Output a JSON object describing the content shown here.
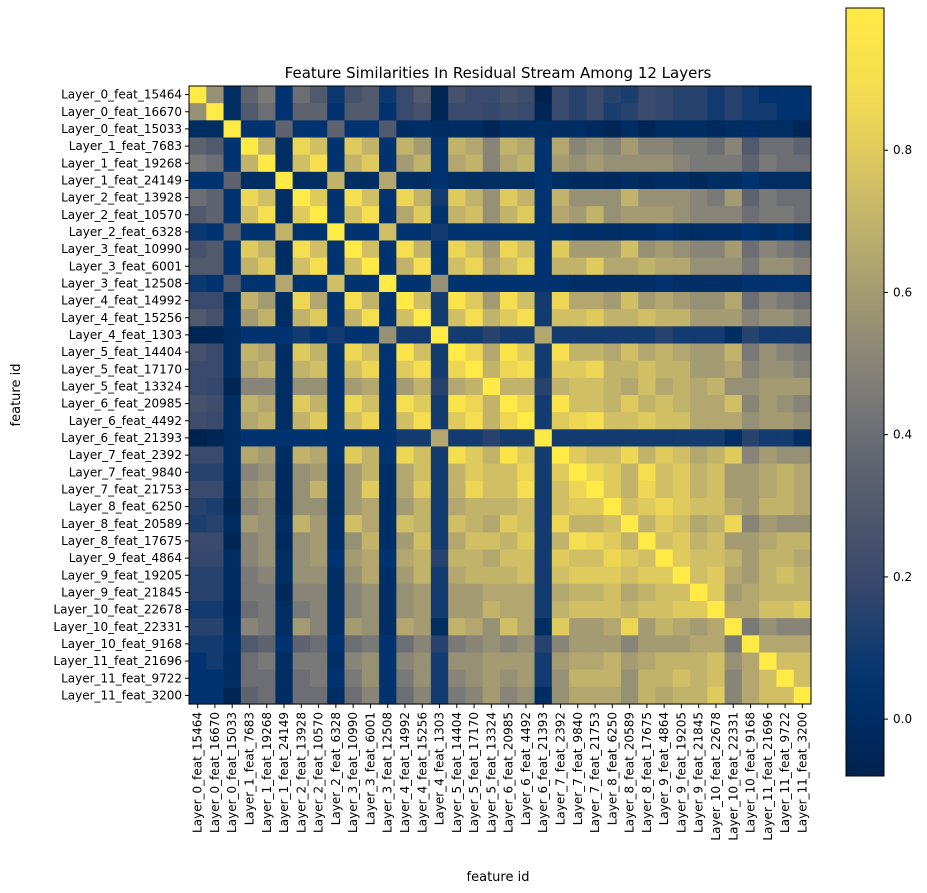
{
  "chart_data": {
    "type": "heatmap",
    "title": "Feature Similarities In Residual Stream Among 12 Layers",
    "xlabel": "feature id",
    "ylabel": "feature id",
    "colormap": "cividis",
    "vmin": -0.08,
    "vmax": 1.0,
    "colorbar_ticks": [
      "0.0",
      "0.2",
      "0.4",
      "0.6",
      "0.8"
    ],
    "colorbar_tick_values": [
      0.0,
      0.2,
      0.4,
      0.6,
      0.8
    ],
    "features": [
      "Layer_0_feat_15464",
      "Layer_0_feat_16670",
      "Layer_0_feat_15033",
      "Layer_1_feat_7683",
      "Layer_1_feat_19268",
      "Layer_1_feat_24149",
      "Layer_2_feat_13928",
      "Layer_2_feat_10570",
      "Layer_2_feat_6328",
      "Layer_3_feat_10990",
      "Layer_3_feat_6001",
      "Layer_3_feat_12508",
      "Layer_4_feat_14992",
      "Layer_4_feat_15256",
      "Layer_4_feat_1303",
      "Layer_5_feat_14404",
      "Layer_5_feat_17170",
      "Layer_5_feat_13324",
      "Layer_6_feat_20985",
      "Layer_6_feat_4492",
      "Layer_6_feat_21393",
      "Layer_7_feat_2392",
      "Layer_7_feat_9840",
      "Layer_7_feat_21753",
      "Layer_8_feat_6250",
      "Layer_8_feat_20589",
      "Layer_8_feat_17675",
      "Layer_9_feat_4864",
      "Layer_9_feat_19205",
      "Layer_9_feat_21845",
      "Layer_10_feat_22678",
      "Layer_10_feat_22331",
      "Layer_10_feat_9168",
      "Layer_11_feat_21696",
      "Layer_11_feat_9722",
      "Layer_11_feat_3200"
    ],
    "matrix": [
      [
        1.0,
        0.55,
        0.0,
        0.35,
        0.45,
        0.05,
        0.4,
        0.3,
        0.08,
        0.25,
        0.3,
        0.08,
        0.2,
        0.3,
        -0.05,
        0.25,
        0.2,
        0.2,
        0.25,
        0.22,
        -0.08,
        0.2,
        0.15,
        0.2,
        0.15,
        0.12,
        0.2,
        0.18,
        0.15,
        0.15,
        0.1,
        0.15,
        0.1,
        0.05,
        0.05,
        0.05
      ],
      [
        0.55,
        1.0,
        0.0,
        0.3,
        0.4,
        0.05,
        0.35,
        0.35,
        0.05,
        0.3,
        0.3,
        0.05,
        0.2,
        0.25,
        -0.05,
        0.2,
        0.2,
        0.18,
        0.22,
        0.2,
        -0.05,
        0.2,
        0.15,
        0.2,
        0.12,
        0.15,
        0.2,
        0.18,
        0.15,
        0.15,
        0.1,
        0.15,
        0.1,
        0.1,
        0.05,
        0.05
      ],
      [
        0.0,
        0.0,
        1.0,
        0.05,
        0.05,
        0.35,
        0.05,
        0.05,
        0.35,
        0.05,
        0.05,
        0.3,
        0.0,
        0.02,
        0.0,
        0.0,
        0.0,
        -0.05,
        0.0,
        0.0,
        0.0,
        0.0,
        0.0,
        -0.02,
        -0.05,
        0.0,
        -0.05,
        0.0,
        0.0,
        0.0,
        -0.02,
        0.0,
        0.02,
        0.0,
        0.0,
        -0.05
      ],
      [
        0.35,
        0.3,
        0.05,
        1.0,
        0.7,
        0.0,
        0.85,
        0.75,
        0.05,
        0.8,
        0.7,
        0.05,
        0.7,
        0.6,
        0.05,
        0.7,
        0.65,
        0.5,
        0.7,
        0.65,
        0.05,
        0.65,
        0.5,
        0.55,
        0.5,
        0.6,
        0.5,
        0.5,
        0.45,
        0.45,
        0.4,
        0.5,
        0.3,
        0.4,
        0.4,
        0.35
      ],
      [
        0.45,
        0.4,
        0.05,
        0.7,
        1.0,
        0.0,
        0.75,
        0.9,
        0.05,
        0.7,
        0.8,
        0.05,
        0.6,
        0.7,
        0.05,
        0.65,
        0.7,
        0.5,
        0.65,
        0.7,
        0.05,
        0.6,
        0.55,
        0.6,
        0.55,
        0.55,
        0.55,
        0.55,
        0.5,
        0.45,
        0.45,
        0.45,
        0.35,
        0.45,
        0.4,
        0.4
      ],
      [
        0.05,
        0.05,
        0.35,
        0.0,
        0.0,
        1.0,
        0.0,
        0.0,
        0.7,
        0.0,
        0.0,
        0.65,
        0.0,
        0.0,
        0.05,
        0.0,
        0.0,
        0.0,
        0.0,
        0.0,
        0.05,
        0.0,
        -0.02,
        -0.02,
        -0.03,
        0.0,
        -0.02,
        0.0,
        0.0,
        -0.03,
        0.0,
        0.0,
        0.05,
        0.0,
        0.0,
        0.0
      ],
      [
        0.4,
        0.35,
        0.05,
        0.85,
        0.75,
        0.0,
        1.0,
        0.8,
        0.05,
        0.9,
        0.75,
        0.05,
        0.85,
        0.7,
        0.1,
        0.8,
        0.7,
        0.55,
        0.8,
        0.7,
        0.05,
        0.7,
        0.55,
        0.55,
        0.55,
        0.7,
        0.55,
        0.55,
        0.55,
        0.5,
        0.45,
        0.6,
        0.35,
        0.45,
        0.4,
        0.4
      ],
      [
        0.3,
        0.35,
        0.05,
        0.75,
        0.9,
        0.0,
        0.8,
        1.0,
        0.05,
        0.75,
        0.9,
        0.05,
        0.65,
        0.8,
        0.05,
        0.7,
        0.75,
        0.55,
        0.7,
        0.8,
        0.05,
        0.65,
        0.6,
        0.7,
        0.55,
        0.6,
        0.6,
        0.6,
        0.55,
        0.5,
        0.5,
        0.5,
        0.4,
        0.45,
        0.45,
        0.4
      ],
      [
        0.08,
        0.05,
        0.35,
        0.05,
        0.05,
        0.7,
        0.05,
        0.05,
        1.0,
        0.05,
        0.05,
        0.75,
        0.05,
        0.05,
        0.1,
        0.05,
        0.05,
        0.05,
        0.05,
        0.05,
        0.05,
        0.05,
        0.02,
        0.02,
        0.0,
        0.02,
        0.02,
        0.05,
        0.02,
        0.0,
        0.02,
        0.02,
        0.05,
        0.02,
        0.05,
        0.0
      ],
      [
        0.25,
        0.3,
        0.05,
        0.8,
        0.7,
        0.0,
        0.9,
        0.75,
        0.05,
        1.0,
        0.75,
        0.05,
        0.9,
        0.7,
        0.05,
        0.85,
        0.75,
        0.6,
        0.85,
        0.75,
        0.05,
        0.8,
        0.6,
        0.6,
        0.6,
        0.75,
        0.55,
        0.6,
        0.55,
        0.5,
        0.5,
        0.6,
        0.4,
        0.5,
        0.45,
        0.4
      ],
      [
        0.3,
        0.3,
        0.05,
        0.7,
        0.8,
        0.0,
        0.75,
        0.9,
        0.05,
        0.75,
        1.0,
        0.05,
        0.7,
        0.9,
        0.05,
        0.75,
        0.85,
        0.65,
        0.75,
        0.85,
        0.05,
        0.7,
        0.7,
        0.8,
        0.65,
        0.65,
        0.7,
        0.65,
        0.65,
        0.55,
        0.55,
        0.55,
        0.45,
        0.55,
        0.55,
        0.5
      ],
      [
        0.08,
        0.05,
        0.3,
        0.05,
        0.05,
        0.65,
        0.05,
        0.05,
        0.75,
        0.05,
        0.05,
        1.0,
        0.05,
        0.05,
        0.55,
        0.05,
        0.05,
        0.05,
        0.05,
        0.05,
        0.05,
        0.05,
        0.02,
        0.02,
        0.02,
        0.02,
        0.02,
        0.05,
        0.02,
        0.02,
        0.02,
        0.02,
        0.05,
        0.05,
        0.05,
        0.05
      ],
      [
        0.2,
        0.2,
        0.0,
        0.7,
        0.6,
        0.0,
        0.85,
        0.65,
        0.05,
        0.9,
        0.7,
        0.05,
        1.0,
        0.75,
        0.1,
        0.95,
        0.8,
        0.6,
        0.9,
        0.75,
        0.1,
        0.85,
        0.65,
        0.65,
        0.6,
        0.75,
        0.6,
        0.65,
        0.6,
        0.55,
        0.55,
        0.65,
        0.4,
        0.5,
        0.45,
        0.4
      ],
      [
        0.3,
        0.25,
        0.02,
        0.6,
        0.7,
        0.0,
        0.7,
        0.8,
        0.05,
        0.7,
        0.9,
        0.05,
        0.75,
        1.0,
        0.1,
        0.75,
        0.9,
        0.7,
        0.8,
        0.9,
        0.1,
        0.75,
        0.75,
        0.8,
        0.7,
        0.7,
        0.75,
        0.7,
        0.7,
        0.6,
        0.6,
        0.6,
        0.5,
        0.55,
        0.55,
        0.5
      ],
      [
        -0.05,
        -0.05,
        0.0,
        0.05,
        0.05,
        0.05,
        0.1,
        0.05,
        0.1,
        0.05,
        0.05,
        0.55,
        0.1,
        0.1,
        1.0,
        0.1,
        0.1,
        0.15,
        0.1,
        0.1,
        0.65,
        0.1,
        0.1,
        0.1,
        0.1,
        0.1,
        0.1,
        0.15,
        0.1,
        0.1,
        0.1,
        0.0,
        0.15,
        0.1,
        0.1,
        0.1
      ],
      [
        0.25,
        0.2,
        0.0,
        0.7,
        0.65,
        0.0,
        0.8,
        0.7,
        0.05,
        0.85,
        0.75,
        0.05,
        0.95,
        0.75,
        0.1,
        1.0,
        0.85,
        0.65,
        0.95,
        0.8,
        0.1,
        0.9,
        0.7,
        0.7,
        0.65,
        0.75,
        0.65,
        0.7,
        0.65,
        0.6,
        0.6,
        0.7,
        0.45,
        0.55,
        0.5,
        0.45
      ],
      [
        0.2,
        0.2,
        0.0,
        0.65,
        0.7,
        0.0,
        0.7,
        0.75,
        0.05,
        0.75,
        0.85,
        0.05,
        0.8,
        0.9,
        0.1,
        0.85,
        1.0,
        0.7,
        0.85,
        0.9,
        0.1,
        0.8,
        0.8,
        0.85,
        0.7,
        0.7,
        0.75,
        0.7,
        0.7,
        0.6,
        0.6,
        0.65,
        0.5,
        0.55,
        0.55,
        0.5
      ],
      [
        0.2,
        0.18,
        -0.05,
        0.5,
        0.5,
        0.0,
        0.55,
        0.55,
        0.05,
        0.6,
        0.65,
        0.05,
        0.6,
        0.7,
        0.15,
        0.65,
        0.7,
        1.0,
        0.7,
        0.7,
        0.15,
        0.7,
        0.75,
        0.75,
        0.7,
        0.65,
        0.75,
        0.65,
        0.7,
        0.65,
        0.7,
        0.55,
        0.55,
        0.6,
        0.6,
        0.6
      ],
      [
        0.25,
        0.22,
        0.0,
        0.7,
        0.65,
        0.0,
        0.8,
        0.7,
        0.05,
        0.85,
        0.75,
        0.05,
        0.9,
        0.8,
        0.1,
        0.95,
        0.85,
        0.7,
        1.0,
        0.85,
        0.1,
        0.95,
        0.75,
        0.75,
        0.7,
        0.8,
        0.7,
        0.75,
        0.7,
        0.65,
        0.65,
        0.75,
        0.5,
        0.6,
        0.55,
        0.5
      ],
      [
        0.22,
        0.2,
        0.0,
        0.65,
        0.7,
        0.0,
        0.7,
        0.8,
        0.05,
        0.75,
        0.85,
        0.05,
        0.75,
        0.9,
        0.1,
        0.8,
        0.9,
        0.7,
        0.85,
        1.0,
        0.1,
        0.8,
        0.85,
        0.9,
        0.75,
        0.75,
        0.8,
        0.75,
        0.75,
        0.65,
        0.65,
        0.65,
        0.55,
        0.6,
        0.6,
        0.55
      ],
      [
        -0.08,
        -0.05,
        0.0,
        0.05,
        0.05,
        0.05,
        0.05,
        0.05,
        0.05,
        0.05,
        0.05,
        0.05,
        0.1,
        0.1,
        0.65,
        0.1,
        0.1,
        0.15,
        0.1,
        0.1,
        1.0,
        0.1,
        0.1,
        0.1,
        0.1,
        0.1,
        0.1,
        0.1,
        0.1,
        0.1,
        0.1,
        0.0,
        0.15,
        0.1,
        0.1,
        0.0
      ],
      [
        0.2,
        0.2,
        0.0,
        0.65,
        0.6,
        0.0,
        0.7,
        0.65,
        0.05,
        0.8,
        0.7,
        0.05,
        0.85,
        0.75,
        0.1,
        0.9,
        0.8,
        0.7,
        0.95,
        0.8,
        0.1,
        1.0,
        0.8,
        0.75,
        0.75,
        0.85,
        0.7,
        0.8,
        0.75,
        0.65,
        0.7,
        0.8,
        0.5,
        0.6,
        0.55,
        0.55
      ],
      [
        0.15,
        0.15,
        0.0,
        0.5,
        0.55,
        -0.02,
        0.55,
        0.6,
        0.02,
        0.6,
        0.7,
        0.02,
        0.65,
        0.75,
        0.1,
        0.7,
        0.8,
        0.75,
        0.75,
        0.85,
        0.1,
        0.8,
        1.0,
        0.85,
        0.8,
        0.7,
        0.9,
        0.75,
        0.8,
        0.7,
        0.75,
        0.6,
        0.6,
        0.65,
        0.7,
        0.65
      ],
      [
        0.2,
        0.2,
        -0.02,
        0.55,
        0.6,
        -0.02,
        0.55,
        0.7,
        0.02,
        0.6,
        0.8,
        0.02,
        0.65,
        0.8,
        0.1,
        0.7,
        0.85,
        0.75,
        0.75,
        0.9,
        0.1,
        0.75,
        0.85,
        1.0,
        0.8,
        0.7,
        0.85,
        0.75,
        0.8,
        0.7,
        0.75,
        0.6,
        0.6,
        0.65,
        0.7,
        0.65
      ],
      [
        0.15,
        0.12,
        -0.05,
        0.5,
        0.55,
        -0.03,
        0.55,
        0.55,
        0.0,
        0.6,
        0.65,
        0.02,
        0.6,
        0.7,
        0.1,
        0.65,
        0.7,
        0.7,
        0.7,
        0.75,
        0.1,
        0.75,
        0.8,
        0.8,
        1.0,
        0.75,
        0.8,
        0.85,
        0.8,
        0.75,
        0.75,
        0.65,
        0.6,
        0.7,
        0.7,
        0.65
      ],
      [
        0.12,
        0.15,
        0.0,
        0.6,
        0.55,
        0.0,
        0.7,
        0.6,
        0.02,
        0.75,
        0.65,
        0.02,
        0.75,
        0.7,
        0.1,
        0.75,
        0.7,
        0.65,
        0.8,
        0.75,
        0.1,
        0.85,
        0.7,
        0.7,
        0.75,
        1.0,
        0.7,
        0.8,
        0.75,
        0.65,
        0.7,
        0.85,
        0.5,
        0.6,
        0.55,
        0.55
      ],
      [
        0.2,
        0.2,
        -0.05,
        0.5,
        0.55,
        -0.02,
        0.55,
        0.6,
        0.02,
        0.55,
        0.7,
        0.02,
        0.6,
        0.75,
        0.1,
        0.65,
        0.75,
        0.75,
        0.7,
        0.8,
        0.1,
        0.7,
        0.9,
        0.85,
        0.8,
        0.7,
        1.0,
        0.75,
        0.8,
        0.7,
        0.75,
        0.6,
        0.6,
        0.65,
        0.7,
        0.7
      ],
      [
        0.18,
        0.18,
        0.0,
        0.5,
        0.55,
        0.0,
        0.55,
        0.6,
        0.05,
        0.6,
        0.65,
        0.05,
        0.65,
        0.7,
        0.15,
        0.7,
        0.7,
        0.65,
        0.75,
        0.75,
        0.1,
        0.8,
        0.75,
        0.75,
        0.85,
        0.8,
        0.75,
        1.0,
        0.8,
        0.75,
        0.75,
        0.7,
        0.6,
        0.7,
        0.7,
        0.65
      ],
      [
        0.15,
        0.15,
        0.0,
        0.45,
        0.5,
        0.0,
        0.55,
        0.55,
        0.02,
        0.55,
        0.65,
        0.02,
        0.6,
        0.7,
        0.1,
        0.65,
        0.7,
        0.7,
        0.7,
        0.75,
        0.1,
        0.75,
        0.8,
        0.8,
        0.8,
        0.75,
        0.8,
        0.8,
        1.0,
        0.75,
        0.8,
        0.65,
        0.6,
        0.7,
        0.75,
        0.7
      ],
      [
        0.15,
        0.15,
        0.0,
        0.45,
        0.45,
        -0.03,
        0.5,
        0.5,
        0.0,
        0.5,
        0.55,
        0.02,
        0.55,
        0.6,
        0.1,
        0.6,
        0.6,
        0.65,
        0.65,
        0.65,
        0.1,
        0.65,
        0.7,
        0.7,
        0.75,
        0.65,
        0.7,
        0.75,
        0.75,
        1.0,
        0.8,
        0.6,
        0.65,
        0.7,
        0.7,
        0.7
      ],
      [
        0.1,
        0.1,
        -0.02,
        0.4,
        0.45,
        0.0,
        0.45,
        0.5,
        0.02,
        0.5,
        0.55,
        0.02,
        0.55,
        0.6,
        0.1,
        0.6,
        0.6,
        0.7,
        0.65,
        0.65,
        0.1,
        0.7,
        0.75,
        0.75,
        0.75,
        0.7,
        0.75,
        0.75,
        0.8,
        0.8,
        1.0,
        0.65,
        0.65,
        0.75,
        0.75,
        0.8
      ],
      [
        0.15,
        0.15,
        0.0,
        0.5,
        0.45,
        0.0,
        0.6,
        0.5,
        0.02,
        0.6,
        0.55,
        0.02,
        0.65,
        0.6,
        0.0,
        0.7,
        0.65,
        0.55,
        0.75,
        0.65,
        0.0,
        0.8,
        0.6,
        0.6,
        0.65,
        0.85,
        0.6,
        0.7,
        0.65,
        0.6,
        0.65,
        1.0,
        0.45,
        0.55,
        0.5,
        0.5
      ],
      [
        0.1,
        0.1,
        0.02,
        0.3,
        0.35,
        0.05,
        0.35,
        0.4,
        0.05,
        0.4,
        0.45,
        0.05,
        0.4,
        0.5,
        0.15,
        0.45,
        0.5,
        0.55,
        0.5,
        0.55,
        0.15,
        0.5,
        0.6,
        0.6,
        0.6,
        0.5,
        0.6,
        0.6,
        0.6,
        0.65,
        0.65,
        0.45,
        1.0,
        0.65,
        0.65,
        0.65
      ],
      [
        0.05,
        0.1,
        0.0,
        0.4,
        0.45,
        0.0,
        0.45,
        0.45,
        0.02,
        0.5,
        0.55,
        0.05,
        0.5,
        0.55,
        0.1,
        0.55,
        0.55,
        0.6,
        0.6,
        0.6,
        0.1,
        0.6,
        0.65,
        0.65,
        0.7,
        0.6,
        0.65,
        0.7,
        0.7,
        0.7,
        0.75,
        0.55,
        0.65,
        1.0,
        0.75,
        0.75
      ],
      [
        0.05,
        0.05,
        0.0,
        0.4,
        0.4,
        0.0,
        0.4,
        0.45,
        0.05,
        0.45,
        0.55,
        0.05,
        0.45,
        0.55,
        0.1,
        0.5,
        0.55,
        0.6,
        0.55,
        0.6,
        0.1,
        0.55,
        0.7,
        0.7,
        0.7,
        0.55,
        0.7,
        0.7,
        0.75,
        0.7,
        0.75,
        0.5,
        0.65,
        0.75,
        1.0,
        0.75
      ],
      [
        0.05,
        0.05,
        -0.05,
        0.35,
        0.4,
        0.0,
        0.4,
        0.4,
        0.0,
        0.4,
        0.5,
        0.05,
        0.4,
        0.5,
        0.1,
        0.45,
        0.5,
        0.6,
        0.5,
        0.55,
        0.0,
        0.55,
        0.65,
        0.65,
        0.65,
        0.55,
        0.7,
        0.65,
        0.7,
        0.7,
        0.8,
        0.5,
        0.65,
        0.75,
        0.75,
        1.0
      ]
    ]
  }
}
